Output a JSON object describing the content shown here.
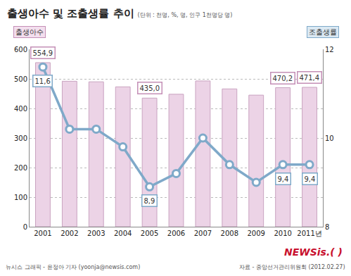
{
  "chart_data": {
    "type": "bar",
    "title": "출생아수 및 조출생률 추이",
    "subtitle": "(단위 : 천명, %, 명, 인구 1천명당 명)",
    "categories": [
      "2001",
      "2002",
      "2003",
      "2004",
      "2005",
      "2006",
      "2007",
      "2008",
      "2009",
      "2010",
      "2011년"
    ],
    "series": [
      {
        "name": "출생아수",
        "type": "bar",
        "color": "#ecd3e6",
        "values": [
          554.9,
          492,
          490,
          473,
          435.0,
          448,
          493,
          466,
          445,
          470.2,
          471.4
        ],
        "value_labels": [
          "554,9",
          null,
          null,
          null,
          "435,0",
          null,
          null,
          null,
          null,
          "470,2",
          "471,4"
        ]
      },
      {
        "name": "조출생률",
        "type": "line",
        "axis": "y2",
        "color": "#7fa9c9",
        "marker": "circle",
        "line_style": "solid",
        "values": [
          11.6,
          10.2,
          10.2,
          9.8,
          8.9,
          9.2,
          10.0,
          9.4,
          9.0,
          9.4,
          9.4
        ],
        "value_labels": [
          "11,6",
          null,
          null,
          null,
          "8,9",
          null,
          null,
          null,
          null,
          "9,4",
          "9,4"
        ]
      }
    ],
    "ylim": [
      0,
      600
    ],
    "yticks": [
      0,
      100,
      200,
      300,
      400,
      500,
      600
    ],
    "y2lim": [
      8,
      12
    ],
    "y2ticks": [
      8,
      10,
      12
    ],
    "grid": true,
    "data_labels": true,
    "notes": {
      "credit": "뉴시스 그래픽 - 윤정아 기자 (yoonja@newsis.com)",
      "source": "자료 - 중앙선거관리위원회 (2012.02.27)",
      "logo": "NEWSis.( )"
    }
  }
}
